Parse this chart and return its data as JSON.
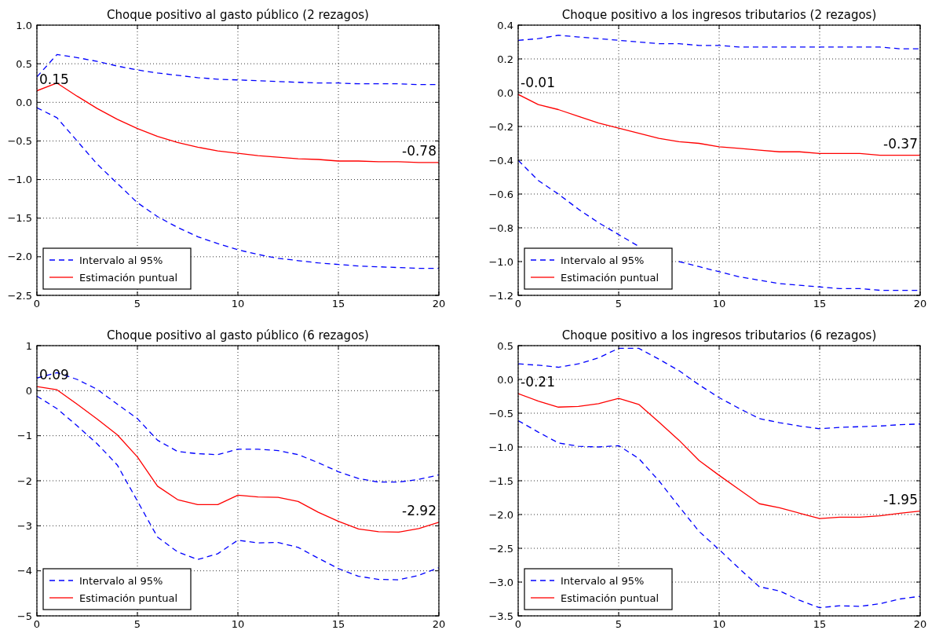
{
  "chart_data": [
    {
      "type": "line",
      "title": "Choque positivo al gasto público (2 rezagos)",
      "x": [
        0,
        1,
        2,
        3,
        4,
        5,
        6,
        7,
        8,
        9,
        10,
        11,
        12,
        13,
        14,
        15,
        16,
        17,
        18,
        19,
        20
      ],
      "xlim": [
        0,
        20
      ],
      "xticks": [
        0,
        5,
        10,
        15,
        20
      ],
      "ylim": [
        -2.5,
        1.0
      ],
      "yticks": [
        {
          "value": -2.5,
          "label": "−2.5"
        },
        {
          "value": -2.0,
          "label": "−2.0"
        },
        {
          "value": -1.5,
          "label": "−1.5"
        },
        {
          "value": -1.0,
          "label": "−1.0"
        },
        {
          "value": -0.5,
          "label": "−0.5"
        },
        {
          "value": 0,
          "label": "0.0"
        },
        {
          "value": 0.5,
          "label": "0.5"
        },
        {
          "value": 1.0,
          "label": "1.0"
        }
      ],
      "grid": true,
      "legend": "bottom left",
      "series": [
        {
          "name": "Intervalo al 95%",
          "color": "#0000ff",
          "line_style": "dashed",
          "values": [
            0.33,
            0.62,
            0.58,
            0.53,
            0.47,
            0.42,
            0.38,
            0.35,
            0.32,
            0.3,
            0.29,
            0.28,
            0.27,
            0.26,
            0.25,
            0.25,
            0.24,
            0.24,
            0.24,
            0.23,
            0.23
          ]
        },
        {
          "color": "#0000ff",
          "line_style": "dashed",
          "values": [
            -0.07,
            -0.2,
            -0.5,
            -0.8,
            -1.05,
            -1.3,
            -1.48,
            -1.62,
            -1.74,
            -1.83,
            -1.91,
            -1.97,
            -2.02,
            -2.05,
            -2.08,
            -2.1,
            -2.12,
            -2.13,
            -2.14,
            -2.15,
            -2.15
          ]
        },
        {
          "name": "Estimación puntual",
          "color": "#ff0000",
          "line_style": "solid",
          "values": [
            0.15,
            0.25,
            0.08,
            -0.08,
            -0.22,
            -0.34,
            -0.44,
            -0.52,
            -0.58,
            -0.63,
            -0.66,
            -0.69,
            -0.71,
            -0.73,
            -0.74,
            -0.76,
            -0.76,
            -0.77,
            -0.77,
            -0.78,
            -0.78
          ]
        }
      ],
      "annotations": [
        "0.15",
        "-0.78"
      ]
    },
    {
      "type": "line",
      "title": "Choque positivo a los ingresos tributarios (2 rezagos)",
      "x": [
        0,
        1,
        2,
        3,
        4,
        5,
        6,
        7,
        8,
        9,
        10,
        11,
        12,
        13,
        14,
        15,
        16,
        17,
        18,
        19,
        20
      ],
      "xlim": [
        0,
        20
      ],
      "xticks": [
        0,
        5,
        10,
        15,
        20
      ],
      "ylim": [
        -1.2,
        0.4
      ],
      "yticks": [
        {
          "value": -1.2,
          "label": "−1.2"
        },
        {
          "value": -1.0,
          "label": "−1.0"
        },
        {
          "value": -0.8,
          "label": "−0.8"
        },
        {
          "value": -0.6,
          "label": "−0.6"
        },
        {
          "value": -0.4,
          "label": "−0.4"
        },
        {
          "value": -0.2,
          "label": "−0.2"
        },
        {
          "value": 0,
          "label": "0.0"
        },
        {
          "value": 0.2,
          "label": "0.2"
        },
        {
          "value": 0.4,
          "label": "0.4"
        }
      ],
      "grid": true,
      "legend": "bottom left",
      "series": [
        {
          "name": "Intervalo al 95%",
          "color": "#0000ff",
          "line_style": "dashed",
          "values": [
            0.31,
            0.32,
            0.34,
            0.33,
            0.32,
            0.31,
            0.3,
            0.29,
            0.29,
            0.28,
            0.28,
            0.27,
            0.27,
            0.27,
            0.27,
            0.27,
            0.27,
            0.27,
            0.27,
            0.26,
            0.26
          ]
        },
        {
          "color": "#0000ff",
          "line_style": "dashed",
          "values": [
            -0.4,
            -0.52,
            -0.6,
            -0.69,
            -0.77,
            -0.84,
            -0.91,
            null,
            -1.0,
            -1.03,
            -1.06,
            -1.09,
            -1.11,
            -1.13,
            -1.14,
            -1.15,
            -1.16,
            -1.16,
            -1.17,
            -1.17,
            -1.17
          ]
        },
        {
          "name": "Estimación puntual",
          "color": "#ff0000",
          "line_style": "solid",
          "values": [
            -0.01,
            -0.07,
            -0.1,
            -0.14,
            -0.18,
            -0.21,
            -0.24,
            -0.27,
            -0.29,
            -0.3,
            -0.32,
            -0.33,
            -0.34,
            -0.35,
            -0.35,
            -0.36,
            -0.36,
            -0.36,
            -0.37,
            -0.37,
            -0.37
          ]
        }
      ],
      "annotations": [
        "-0.01",
        "-0.37"
      ]
    },
    {
      "type": "line",
      "title": "Choque positivo al gasto público (6 rezagos)",
      "x": [
        0,
        1,
        2,
        3,
        4,
        5,
        6,
        7,
        8,
        9,
        10,
        11,
        12,
        13,
        14,
        15,
        16,
        17,
        18,
        19,
        20
      ],
      "xlim": [
        0,
        20
      ],
      "xticks": [
        0,
        5,
        10,
        15,
        20
      ],
      "ylim": [
        -5,
        1
      ],
      "yticks": [
        {
          "value": -5,
          "label": "−5"
        },
        {
          "value": -4,
          "label": "−4"
        },
        {
          "value": -3,
          "label": "−3"
        },
        {
          "value": -2,
          "label": "−2"
        },
        {
          "value": -1,
          "label": "−1"
        },
        0,
        1
      ],
      "grid": true,
      "legend": "bottom left",
      "series": [
        {
          "name": "Intervalo al 95%",
          "color": "#0000ff",
          "line_style": "dashed",
          "values": [
            0.28,
            0.4,
            0.25,
            0.03,
            -0.3,
            -0.62,
            -1.1,
            -1.35,
            -1.4,
            -1.42,
            -1.3,
            -1.3,
            -1.33,
            -1.42,
            -1.6,
            -1.8,
            -1.95,
            -2.03,
            -2.03,
            -1.97,
            -1.87
          ]
        },
        {
          "color": "#0000ff",
          "line_style": "dashed",
          "values": [
            -0.12,
            -0.4,
            -0.78,
            -1.18,
            -1.65,
            -2.45,
            -3.25,
            -3.58,
            -3.75,
            -3.62,
            -3.32,
            -3.38,
            -3.37,
            -3.48,
            -3.72,
            -3.95,
            -4.12,
            -4.19,
            -4.2,
            -4.1,
            -3.93
          ]
        },
        {
          "name": "Estimación puntual",
          "color": "#ff0000",
          "line_style": "solid",
          "values": [
            0.09,
            0.02,
            -0.3,
            -0.63,
            -0.98,
            -1.47,
            -2.12,
            -2.42,
            -2.53,
            -2.53,
            -2.32,
            -2.36,
            -2.37,
            -2.46,
            -2.7,
            -2.9,
            -3.07,
            -3.13,
            -3.14,
            -3.06,
            -2.92
          ]
        }
      ],
      "annotations": [
        "0.09",
        "-2.92"
      ]
    },
    {
      "type": "line",
      "title": "Choque positivo a los ingresos tributarios (6 rezagos)",
      "x": [
        0,
        1,
        2,
        3,
        4,
        5,
        6,
        7,
        8,
        9,
        10,
        11,
        12,
        13,
        14,
        15,
        16,
        17,
        18,
        19,
        20
      ],
      "xlim": [
        0,
        20
      ],
      "xticks": [
        0,
        5,
        10,
        15,
        20
      ],
      "ylim": [
        -3.5,
        0.5
      ],
      "yticks": [
        {
          "value": -3.5,
          "label": "−3.5"
        },
        {
          "value": -3.0,
          "label": "−3.0"
        },
        {
          "value": -2.5,
          "label": "−2.5"
        },
        {
          "value": -2.0,
          "label": "−2.0"
        },
        {
          "value": -1.5,
          "label": "−1.5"
        },
        {
          "value": -1.0,
          "label": "−1.0"
        },
        {
          "value": -0.5,
          "label": "−0.5"
        },
        {
          "value": 0,
          "label": "0.0"
        },
        {
          "value": 0.5,
          "label": "0.5"
        }
      ],
      "grid": true,
      "legend": "bottom left",
      "series": [
        {
          "name": "Intervalo al 95%",
          "color": "#0000ff",
          "line_style": "dashed",
          "values": [
            0.23,
            0.21,
            0.18,
            0.23,
            0.32,
            0.46,
            0.46,
            0.3,
            0.13,
            -0.08,
            -0.27,
            -0.43,
            -0.58,
            -0.64,
            -0.69,
            -0.73,
            -0.71,
            -0.7,
            -0.69,
            -0.67,
            -0.66
          ]
        },
        {
          "color": "#0000ff",
          "line_style": "dashed",
          "values": [
            -0.61,
            -0.78,
            -0.94,
            -0.99,
            -1.0,
            -0.98,
            -1.17,
            -1.5,
            -1.88,
            -2.25,
            -2.52,
            -2.8,
            -3.07,
            -3.13,
            -3.27,
            -3.38,
            -3.35,
            -3.36,
            -3.32,
            -3.25,
            -3.21
          ]
        },
        {
          "name": "Estimación puntual",
          "color": "#ff0000",
          "line_style": "solid",
          "values": [
            -0.21,
            -0.32,
            -0.41,
            -0.4,
            -0.36,
            -0.28,
            -0.37,
            -0.63,
            -0.9,
            -1.2,
            -1.42,
            -1.63,
            -1.84,
            -1.9,
            -1.98,
            -2.06,
            -2.04,
            -2.04,
            -2.02,
            -1.98,
            -1.95
          ]
        }
      ],
      "annotations": [
        "-0.21",
        "-1.95"
      ]
    }
  ]
}
